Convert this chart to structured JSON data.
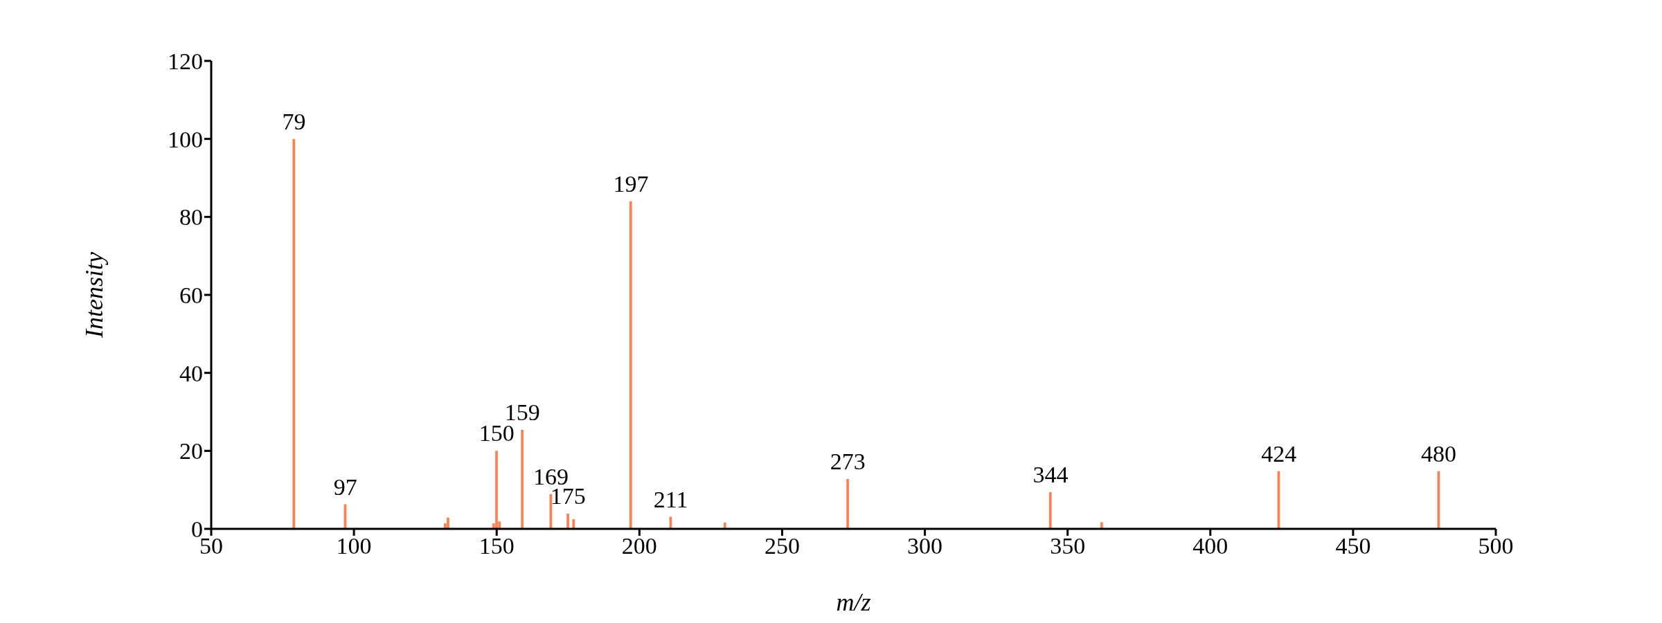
{
  "chart_data": {
    "type": "bar",
    "xlabel": "m/z",
    "ylabel": "Intensity",
    "x": [
      79,
      97,
      132,
      133,
      149,
      150,
      151,
      159,
      169,
      175,
      177,
      197,
      211,
      230,
      273,
      344,
      362,
      424,
      480
    ],
    "values": [
      100,
      6.3,
      1.4,
      2.9,
      1.4,
      20,
      1.9,
      25.4,
      8.9,
      3.9,
      2.5,
      84,
      3.1,
      1.6,
      12.8,
      9.4,
      1.7,
      14.8,
      14.8
    ],
    "annotations": [
      {
        "text": "79",
        "x": 79,
        "y": 100
      },
      {
        "text": "97",
        "x": 97,
        "y": 6.3
      },
      {
        "text": "150",
        "x": 150,
        "y": 20
      },
      {
        "text": "159",
        "x": 159,
        "y": 25.4
      },
      {
        "text": "169",
        "x": 169,
        "y": 8.9
      },
      {
        "text": "175",
        "x": 175,
        "y": 3.9
      },
      {
        "text": "197",
        "x": 197,
        "y": 84
      },
      {
        "text": "211",
        "x": 211,
        "y": 3.1
      },
      {
        "text": "273",
        "x": 273,
        "y": 12.8
      },
      {
        "text": "344",
        "x": 344,
        "y": 9.4
      },
      {
        "text": "424",
        "x": 424,
        "y": 14.8
      },
      {
        "text": "480",
        "x": 480,
        "y": 14.8
      }
    ],
    "color": "#ff7f50",
    "xlim": [
      50,
      500
    ],
    "xticks": [
      50,
      100,
      150,
      200,
      250,
      300,
      350,
      400,
      450,
      500
    ],
    "ylim": [
      0,
      120
    ],
    "yticks": [
      0,
      20,
      40,
      60,
      80,
      100,
      120
    ],
    "grid": false,
    "legend": false
  }
}
